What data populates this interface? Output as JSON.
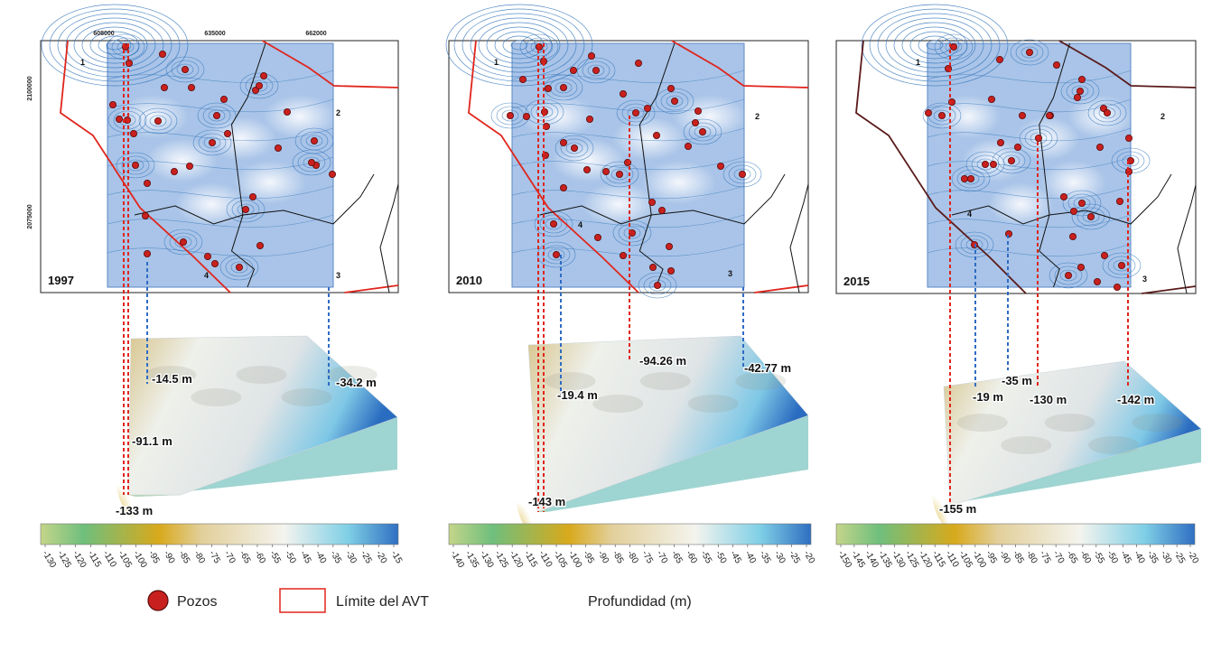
{
  "colors": {
    "well_fill": "#c8201e",
    "well_stroke": "#5a0c0c",
    "boundary": "#e0251c",
    "boundary_2015": "#5a1a1a",
    "red_dash": "#e0251c",
    "blue_dash": "#2f6cc4",
    "contour": "#2a6fb8",
    "map_fill": "#a9c4e8",
    "block_side": "#9ed4d1"
  },
  "colormap": [
    "#c4d58a",
    "#6fbf7d",
    "#d8a91c",
    "#e2cf9a",
    "#f4f4ee",
    "#7fcfe6",
    "#2f6fc2"
  ],
  "coordinates": {
    "x_ticks": [
      "608000",
      "635000",
      "662000"
    ],
    "y_ticks": [
      "2100000",
      "2075000"
    ]
  },
  "zones": [
    "1",
    "2",
    "3",
    "4"
  ],
  "panels": [
    {
      "year": "1997",
      "depth_labels": [
        "-14.5 m",
        "-34.2 m",
        "-91.1 m",
        "-133 m"
      ],
      "colorbar_ticks": [
        "-130",
        "-125",
        "-120",
        "-115",
        "-110",
        "-105",
        "-100",
        "-95",
        "-90",
        "-85",
        "-80",
        "-75",
        "-70",
        "-65",
        "-60",
        "-55",
        "-50",
        "-45",
        "-40",
        "-35",
        "-30",
        "-25",
        "-20",
        "-15"
      ]
    },
    {
      "year": "2010",
      "depth_labels": [
        "-94.26 m",
        "-42.77 m",
        "-19.4 m",
        "-143 m"
      ],
      "colorbar_ticks": [
        "-140",
        "-135",
        "-130",
        "-125",
        "-120",
        "-115",
        "-110",
        "-105",
        "-100",
        "-95",
        "-90",
        "-85",
        "-80",
        "-75",
        "-70",
        "-65",
        "-60",
        "-55",
        "-50",
        "-45",
        "-40",
        "-35",
        "-30",
        "-25",
        "-20"
      ]
    },
    {
      "year": "2015",
      "depth_labels": [
        "-35 m",
        "-19 m",
        "-130 m",
        "-142 m",
        "-155 m"
      ],
      "colorbar_ticks": [
        "-150",
        "-145",
        "-140",
        "-135",
        "-130",
        "-125",
        "-120",
        "-115",
        "-110",
        "-105",
        "-100",
        "-95",
        "-90",
        "-85",
        "-80",
        "-75",
        "-70",
        "-65",
        "-60",
        "-55",
        "-50",
        "-45",
        "-40",
        "-35",
        "-30",
        "-25",
        "-20"
      ]
    }
  ],
  "legend": {
    "wells": "Pozos",
    "boundary": "Límite del AVT",
    "depth": "Profundidad (m)"
  }
}
